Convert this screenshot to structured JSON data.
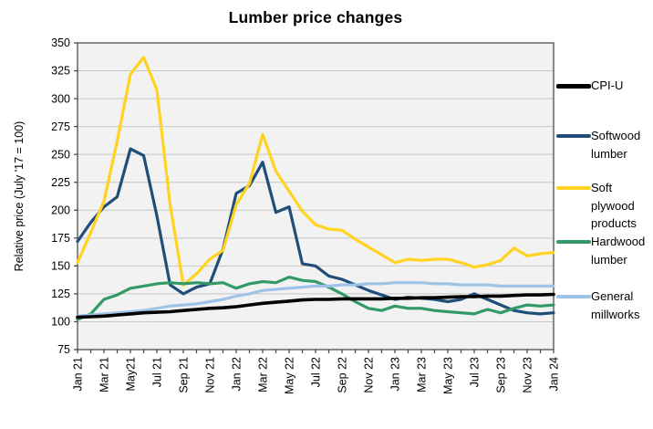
{
  "title": "Lumber price changes",
  "chart_data": {
    "type": "line",
    "title": "Lumber price changes",
    "xlabel": "",
    "ylabel": "Relative price (July '17 = 100)",
    "ylim": [
      75,
      350
    ],
    "ytick_step": 25,
    "grid": "horizontal",
    "legend_position": "right",
    "plot_background": "#F2F2F2",
    "gridline_color": "#C6C6C6",
    "axis_color": "#404040",
    "x_tick_labels_shown": [
      "Jan 21",
      "Mar 21",
      "May21",
      "Jul 21",
      "Sep 21",
      "Nov 21",
      "Jan 22",
      "Mar 22",
      "May 22",
      "Jul 22",
      "Sep 22",
      "Nov 22",
      "Jan 23",
      "Mar 23",
      "May 23",
      "Jul 23",
      "Sep 23",
      "Nov 23",
      "Jan 24"
    ],
    "months": [
      "Jan 21",
      "Feb 21",
      "Mar 21",
      "Apr 21",
      "May 21",
      "Jun 21",
      "Jul 21",
      "Aug 21",
      "Sep 21",
      "Oct 21",
      "Nov 21",
      "Dec 21",
      "Jan 22",
      "Feb 22",
      "Mar 22",
      "Apr 22",
      "May 22",
      "Jun 22",
      "Jul 22",
      "Aug 22",
      "Sep 22",
      "Oct 22",
      "Nov 22",
      "Dec 22",
      "Jan 23",
      "Feb 23",
      "Mar 23",
      "Apr 23",
      "May 23",
      "Jun 23",
      "Jul 23",
      "Aug 23",
      "Sep 23",
      "Oct 23",
      "Nov 23",
      "Dec 23",
      "Jan 24"
    ],
    "series": [
      {
        "name": "CPI-U",
        "color": "#000000",
        "values": [
          104,
          104.5,
          105,
          106,
          107,
          108,
          108.5,
          109,
          110,
          111,
          112,
          112.5,
          113.5,
          115,
          116.5,
          117.5,
          118.5,
          119.5,
          120,
          120,
          120.5,
          120.5,
          120.5,
          120.5,
          121,
          121,
          121.5,
          121.5,
          122,
          122.5,
          122.5,
          123,
          123,
          123.5,
          124,
          124,
          124.5
        ]
      },
      {
        "name": "Softwood lumber",
        "color": "#1F4E79",
        "values": [
          172,
          189,
          203,
          212,
          255,
          249,
          195,
          133,
          125,
          131,
          134,
          165,
          215,
          222,
          243,
          198,
          203,
          152,
          150,
          141,
          138,
          133,
          128,
          124,
          120,
          122,
          121,
          120,
          118,
          120,
          125,
          120,
          115,
          110,
          108,
          107,
          108
        ]
      },
      {
        "name": "Soft plywood products",
        "color": "#FFD320",
        "values": [
          153,
          180,
          208,
          262,
          322,
          337,
          308,
          205,
          133,
          143,
          156,
          164,
          205,
          224,
          268,
          235,
          217,
          199,
          187,
          183,
          182,
          174,
          167,
          160,
          153,
          156,
          155,
          156,
          156,
          153,
          149,
          151,
          155,
          166,
          159,
          161,
          162
        ]
      },
      {
        "name": "Hardwood lumber",
        "color": "#339966",
        "values": [
          102,
          107,
          120,
          124,
          130,
          132,
          134,
          135,
          134,
          135,
          134,
          135,
          130,
          134,
          136,
          135,
          140,
          137,
          136,
          131,
          125,
          118,
          112,
          110,
          114,
          112,
          112,
          110,
          109,
          108,
          107,
          111,
          108,
          112,
          115,
          114,
          115
        ]
      },
      {
        "name": "General millworks",
        "color": "#9DC3E6",
        "values": [
          105,
          106,
          107,
          108,
          109,
          110,
          112,
          114,
          115,
          116,
          118,
          120,
          123,
          125,
          128,
          129,
          130,
          131,
          132,
          132,
          133,
          133,
          134,
          134,
          135,
          135,
          135,
          134,
          134,
          133,
          133,
          133,
          132,
          132,
          132,
          132,
          132
        ]
      }
    ]
  }
}
